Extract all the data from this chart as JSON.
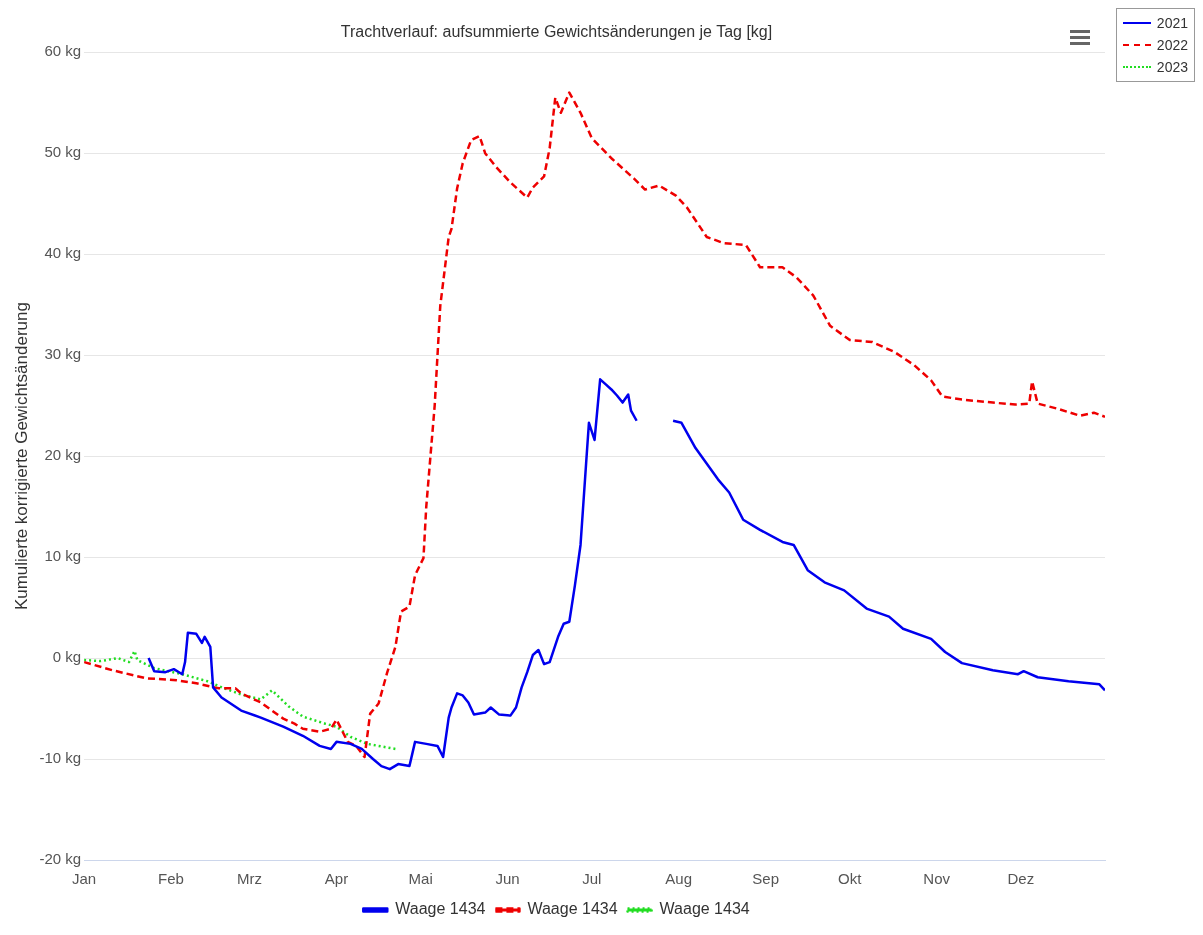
{
  "chart_data": {
    "type": "line",
    "title": "Trachtverlauf: aufsummierte Gewichtsänderungen je Tag [kg]",
    "ylabel": "Kumulierte korrigierte Gewichtsänderung",
    "xlim": [
      "--01-01",
      "--12-31"
    ],
    "xticks": [
      {
        "value": "--01-01",
        "label": "Jan"
      },
      {
        "value": "--02-01",
        "label": "Feb"
      },
      {
        "value": "--03-01",
        "label": "Mrz"
      },
      {
        "value": "--04-01",
        "label": "Apr"
      },
      {
        "value": "--05-01",
        "label": "Mai"
      },
      {
        "value": "--06-01",
        "label": "Jun"
      },
      {
        "value": "--07-01",
        "label": "Jul"
      },
      {
        "value": "--08-01",
        "label": "Aug"
      },
      {
        "value": "--09-01",
        "label": "Sep"
      },
      {
        "value": "--10-01",
        "label": "Okt"
      },
      {
        "value": "--11-01",
        "label": "Nov"
      },
      {
        "value": "--12-01",
        "label": "Dez"
      }
    ],
    "ylim": [
      -20,
      60
    ],
    "yticks": [
      {
        "value": -20,
        "label": "-20 kg"
      },
      {
        "value": -10,
        "label": "-10 kg"
      },
      {
        "value": 0,
        "label": "0 kg"
      },
      {
        "value": 10,
        "label": "10 kg"
      },
      {
        "value": 20,
        "label": "20 kg"
      },
      {
        "value": 30,
        "label": "30 kg"
      },
      {
        "value": 40,
        "label": "40 kg"
      },
      {
        "value": 50,
        "label": "50 kg"
      },
      {
        "value": 60,
        "label": "60 kg"
      }
    ],
    "grid": "y",
    "legend": "bottom",
    "annotations": [
      "2021",
      "2022",
      "2023"
    ],
    "series": [
      {
        "name": "Waage 1434",
        "color": "#0000ee",
        "line_style": "solid",
        "x": [
          "--01-24",
          "--01-26",
          "--01-30",
          "--02-02",
          "--02-05",
          "--02-06",
          "--02-07",
          "--02-10",
          "--02-12",
          "--02-13",
          "--02-15",
          "--02-16",
          "--02-19",
          "--02-26",
          "--03-05",
          "--03-13",
          "--03-20",
          "--03-26",
          "--03-30",
          "--04-01",
          "--04-06",
          "--04-10",
          "--04-14",
          "--04-17",
          "--04-20",
          "--04-23",
          "--04-27",
          "--04-29",
          "--05-03",
          "--05-07",
          "--05-09",
          "--05-11",
          "--05-12",
          "--05-14",
          "--05-16",
          "--05-18",
          "--05-20",
          "--05-24",
          "--05-26",
          "--05-29",
          "--06-02",
          "--06-04",
          "--06-06",
          "--06-08",
          "--06-10",
          "--06-12",
          "--06-14",
          "--06-16",
          "--06-19",
          "--06-21",
          "--06-23",
          "--06-25",
          "--06-27",
          "--06-29",
          "--06-30",
          "--07-02",
          "--07-04",
          "--07-06",
          "--07-08",
          "--07-10",
          "--07-12",
          "--07-14",
          "--07-15",
          "--07-17",
          "--07-25",
          "--07-30",
          "--08-02",
          "--08-07",
          "--08-15",
          "--08-19",
          "--08-24",
          "--08-30",
          "--09-07",
          "--09-11",
          "--09-16",
          "--09-22",
          "--09-29",
          "--10-07",
          "--10-15",
          "--10-20",
          "--10-30",
          "--11-04",
          "--11-10",
          "--11-21",
          "--11-30",
          "--12-02",
          "--12-07",
          "--12-18",
          "--12-29",
          "--12-31"
        ],
        "values": [
          0,
          -1.3,
          -1.4,
          -1.1,
          -1.6,
          -0.4,
          2.5,
          2.4,
          1.5,
          2.1,
          1.1,
          -2.9,
          -3.9,
          -5.2,
          -5.9,
          -6.8,
          -7.7,
          -8.7,
          -9,
          -8.3,
          -8.5,
          -9,
          -10,
          -10.7,
          -11,
          -10.5,
          -10.7,
          -8.3,
          -8.5,
          -8.7,
          -9.8,
          -5.9,
          -4.9,
          -3.5,
          -3.7,
          -4.4,
          -5.6,
          -5.4,
          -4.9,
          -5.6,
          -5.7,
          -4.9,
          -2.9,
          -1.4,
          0.3,
          0.8,
          -0.6,
          -0.4,
          2.1,
          3.4,
          3.6,
          7.2,
          11.2,
          19.3,
          23.3,
          21.6,
          27.6,
          27.1,
          26.6,
          26,
          25.3,
          26.1,
          24.5,
          23.5,
          null,
          23.5,
          23.3,
          20.8,
          17.7,
          16.4,
          13.7,
          12.7,
          11.5,
          11.2,
          8.7,
          7.5,
          6.7,
          4.9,
          4.1,
          2.9,
          1.9,
          0.6,
          -0.5,
          -1.2,
          -1.6,
          -1.3,
          -1.9,
          -2.3,
          -2.6,
          -3.2
        ]
      },
      {
        "name": "Waage 1434",
        "color": "#ee0000",
        "line_style": "dashed",
        "x": [
          "--01-01",
          "--01-11",
          "--01-23",
          "--02-03",
          "--02-10",
          "--02-18",
          "--02-24",
          "--02-26",
          "--03-05",
          "--03-13",
          "--03-17",
          "--03-20",
          "--03-26",
          "--03-30",
          "--04-01",
          "--04-05",
          "--04-08",
          "--04-11",
          "--04-13",
          "--04-16",
          "--04-19",
          "--04-22",
          "--04-24",
          "--04-27",
          "--04-29",
          "--05-02",
          "--05-03",
          "--05-06",
          "--05-08",
          "--05-11",
          "--05-12",
          "--05-14",
          "--05-16",
          "--05-19",
          "--05-22",
          "--05-24",
          "--05-28",
          "--06-02",
          "--06-08",
          "--06-10",
          "--06-14",
          "--06-16",
          "--06-18",
          "--06-20",
          "--06-23",
          "--06-27",
          "--07-01",
          "--07-08",
          "--07-16",
          "--07-20",
          "--07-25",
          "--07-31",
          "--08-04",
          "--08-11",
          "--08-17",
          "--08-25",
          "--08-30",
          "--09-07",
          "--09-12",
          "--09-18",
          "--09-24",
          "--10-01",
          "--10-09",
          "--10-17",
          "--10-24",
          "--10-30",
          "--11-03",
          "--11-10",
          "--11-21",
          "--11-29",
          "--12-04",
          "--12-05",
          "--12-07",
          "--12-14",
          "--12-22",
          "--12-27",
          "--12-31"
        ],
        "values": [
          -0.4,
          -1.2,
          -2,
          -2.2,
          -2.5,
          -3,
          -3,
          -3.5,
          -4.4,
          -6,
          -6.5,
          -7,
          -7.3,
          -7,
          -6.1,
          -8.3,
          -8.7,
          -9.8,
          -5.5,
          -4.5,
          -1.5,
          1.1,
          4.6,
          5.1,
          8.2,
          9.9,
          15,
          25,
          34.9,
          41.7,
          42.5,
          46.5,
          49,
          51.3,
          51.7,
          50,
          48.6,
          47.1,
          45.6,
          46.6,
          47.7,
          50.5,
          55.5,
          54,
          56,
          54,
          51.5,
          49.5,
          47.5,
          46.4,
          46.8,
          45.8,
          44.6,
          41.7,
          41.1,
          40.9,
          38.7,
          38.7,
          37.7,
          35.9,
          32.9,
          31.5,
          31.3,
          30.3,
          29,
          27.5,
          25.9,
          25.6,
          25.3,
          25.1,
          25.2,
          27.4,
          25.2,
          24.7,
          24,
          24.3,
          23.9
        ]
      },
      {
        "name": "Waage 1434",
        "color": "#22dd22",
        "line_style": "dotted",
        "x": [
          "--01-01",
          "--01-07",
          "--01-13",
          "--01-17",
          "--01-19",
          "--01-20",
          "--01-26",
          "--02-05",
          "--02-14",
          "--02-20",
          "--02-26",
          "--03-05",
          "--03-09",
          "--03-15",
          "--03-20",
          "--03-28",
          "--04-01",
          "--04-06",
          "--04-12",
          "--04-22"
        ],
        "values": [
          -0.2,
          -0.3,
          0,
          -0.4,
          0.7,
          -0.2,
          -1,
          -1.6,
          -2.3,
          -3,
          -3.6,
          -4.1,
          -3.2,
          -4.8,
          -5.8,
          -6.5,
          -6.8,
          -7.8,
          -8.5,
          -9
        ]
      }
    ]
  }
}
